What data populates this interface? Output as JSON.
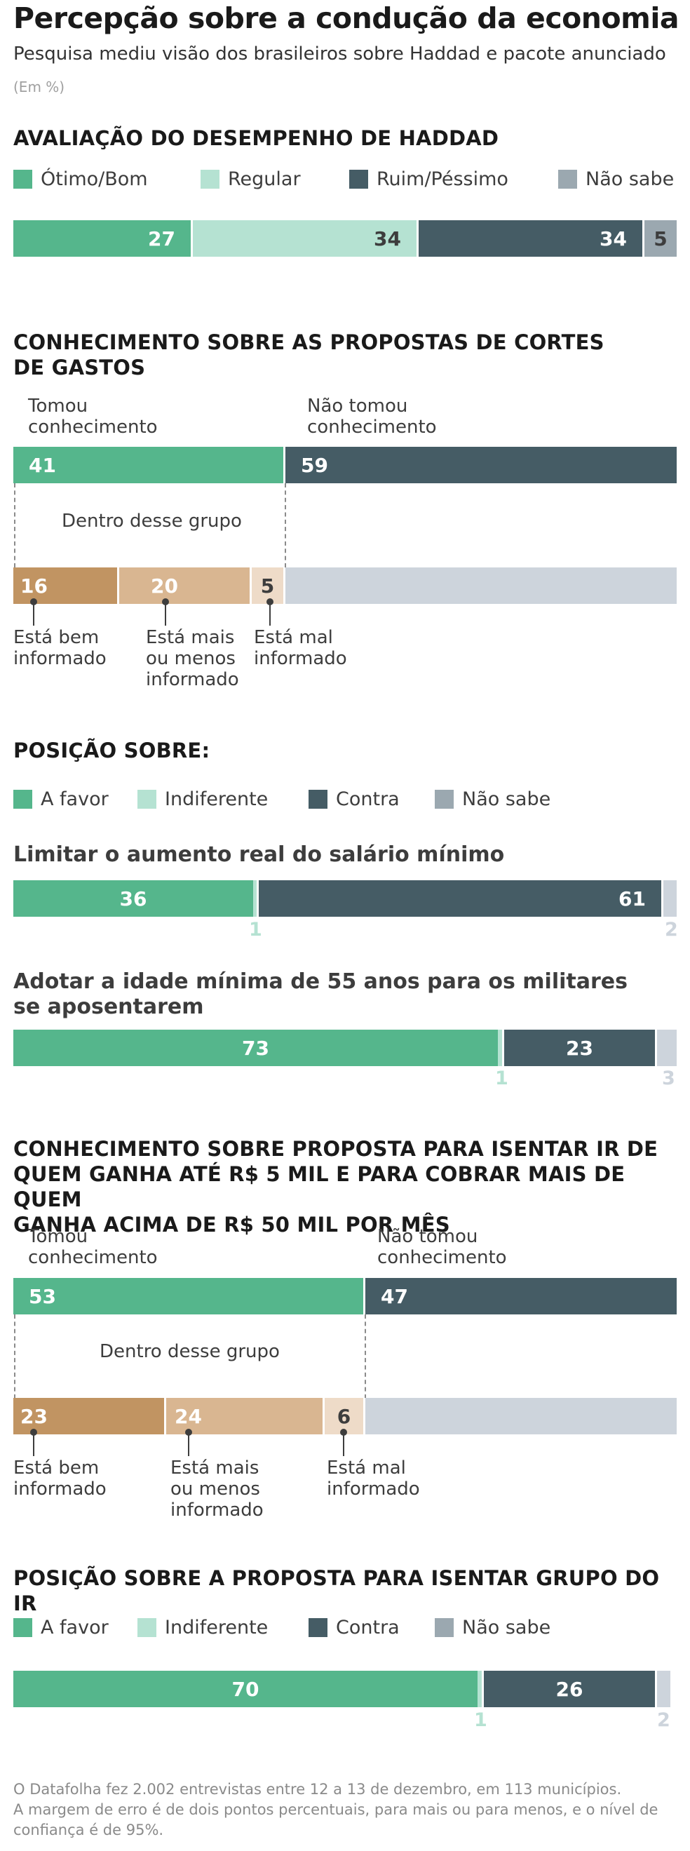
{
  "header": {
    "title": "Percepção sobre a condução da economia",
    "subtitle": "Pesquisa mediu visão dos brasileiros sobre Haddad e pacote anunciado",
    "unit": "(Em %)"
  },
  "colors": {
    "favor": "#55b68c",
    "neutral": "#b5e2d2",
    "against": "#455c65",
    "unknown": "#9ba8b0",
    "well_informed": "#c19462",
    "mid_informed": "#d9b691",
    "poor_informed": "#eedbc8",
    "not_informed_group": "#cdd4dc"
  },
  "sections": {
    "s1": {
      "heading": "AVALIAÇÃO DO DESEMPENHO DE HADDAD",
      "legend": [
        "Ótimo/Bom",
        "Regular",
        "Ruim/Péssimo",
        "Não sabe"
      ]
    },
    "s2": {
      "heading_line1": "CONHECIMENTO SOBRE AS PROPOSTAS DE CORTES",
      "heading_line2": "DE GASTOS",
      "label_yes_1": "Tomou",
      "label_yes_2": "conhecimento",
      "label_no_1": "Não tomou",
      "label_no_2": "conhecimento",
      "group_label": "Dentro desse grupo",
      "well_1": "Está bem",
      "well_2": "informado",
      "mid_1": "Está mais",
      "mid_2": "ou menos",
      "mid_3": "informado",
      "poor_1": "Está mal",
      "poor_2": "informado"
    },
    "s3": {
      "heading": "POSIÇÃO SOBRE:",
      "legend": [
        "A favor",
        "Indiferente",
        "Contra",
        "Não sabe"
      ],
      "q1": "Limitar o aumento real do salário mínimo",
      "q2_line1": "Adotar a idade mínima de 55 anos para os militares",
      "q2_line2": "se aposentarem"
    },
    "s4": {
      "heading_line1": "CONHECIMENTO SOBRE PROPOSTA PARA ISENTAR IR DE",
      "heading_line2": "QUEM GANHA ATÉ R$ 5 MIL E PARA COBRAR MAIS DE QUEM",
      "heading_line3": "GANHA ACIMA DE R$ 50 MIL POR MÊS",
      "label_yes_1": "Tomou",
      "label_yes_2": "conhecimento",
      "label_no_1": "Não tomou",
      "label_no_2": "conhecimento",
      "group_label": "Dentro desse grupo",
      "well_1": "Está bem",
      "well_2": "informado",
      "mid_1": "Está mais",
      "mid_2": "ou menos",
      "mid_3": "informado",
      "poor_1": "Está mal",
      "poor_2": "informado"
    },
    "s5": {
      "heading": "POSIÇÃO SOBRE A PROPOSTA PARA ISENTAR GRUPO DO IR",
      "legend": [
        "A favor",
        "Indiferente",
        "Contra",
        "Não sabe"
      ]
    }
  },
  "footer": {
    "line1": "O Datafolha fez 2.002 entrevistas entre 12 a 13 de dezembro, em 113 municípios.",
    "line2": "A margem de erro é de dois pontos percentuais, para mais ou para menos, e o nível de",
    "line3": "confiança é de 95%."
  },
  "chart_data": [
    {
      "type": "bar",
      "stacked": true,
      "title": "AVALIAÇÃO DO DESEMPENHO DE HADDAD",
      "categories": [
        "Ótimo/Bom",
        "Regular",
        "Ruim/Péssimo",
        "Não sabe"
      ],
      "values": [
        27,
        34,
        34,
        5
      ]
    },
    {
      "type": "bar",
      "stacked": true,
      "title": "CONHECIMENTO SOBRE AS PROPOSTAS DE CORTES DE GASTOS",
      "categories": [
        "Tomou conhecimento",
        "Não tomou conhecimento"
      ],
      "values": [
        41,
        59
      ],
      "subgroup": {
        "label": "Dentro desse grupo",
        "categories": [
          "Está bem informado",
          "Está mais ou menos informado",
          "Está mal informado"
        ],
        "values": [
          16,
          20,
          5
        ]
      }
    },
    {
      "type": "bar",
      "stacked": true,
      "title": "Limitar o aumento real do salário mínimo",
      "categories": [
        "A favor",
        "Indiferente",
        "Contra",
        "Não sabe"
      ],
      "values": [
        36,
        1,
        61,
        2
      ]
    },
    {
      "type": "bar",
      "stacked": true,
      "title": "Adotar a idade mínima de 55 anos para os militares se aposentarem",
      "categories": [
        "A favor",
        "Indiferente",
        "Contra",
        "Não sabe"
      ],
      "values": [
        73,
        1,
        23,
        3
      ]
    },
    {
      "type": "bar",
      "stacked": true,
      "title": "CONHECIMENTO SOBRE PROPOSTA PARA ISENTAR IR DE QUEM GANHA ATÉ R$ 5 MIL E PARA COBRAR MAIS DE QUEM GANHA ACIMA DE R$ 50 MIL POR MÊS",
      "categories": [
        "Tomou conhecimento",
        "Não tomou conhecimento"
      ],
      "values": [
        53,
        47
      ],
      "subgroup": {
        "label": "Dentro desse grupo",
        "categories": [
          "Está bem informado",
          "Está mais ou menos informado",
          "Está mal informado"
        ],
        "values": [
          23,
          24,
          6
        ]
      }
    },
    {
      "type": "bar",
      "stacked": true,
      "title": "POSIÇÃO SOBRE A PROPOSTA PARA ISENTAR GRUPO DO IR",
      "categories": [
        "A favor",
        "Indiferente",
        "Contra",
        "Não sabe"
      ],
      "values": [
        70,
        1,
        26,
        2
      ]
    }
  ]
}
